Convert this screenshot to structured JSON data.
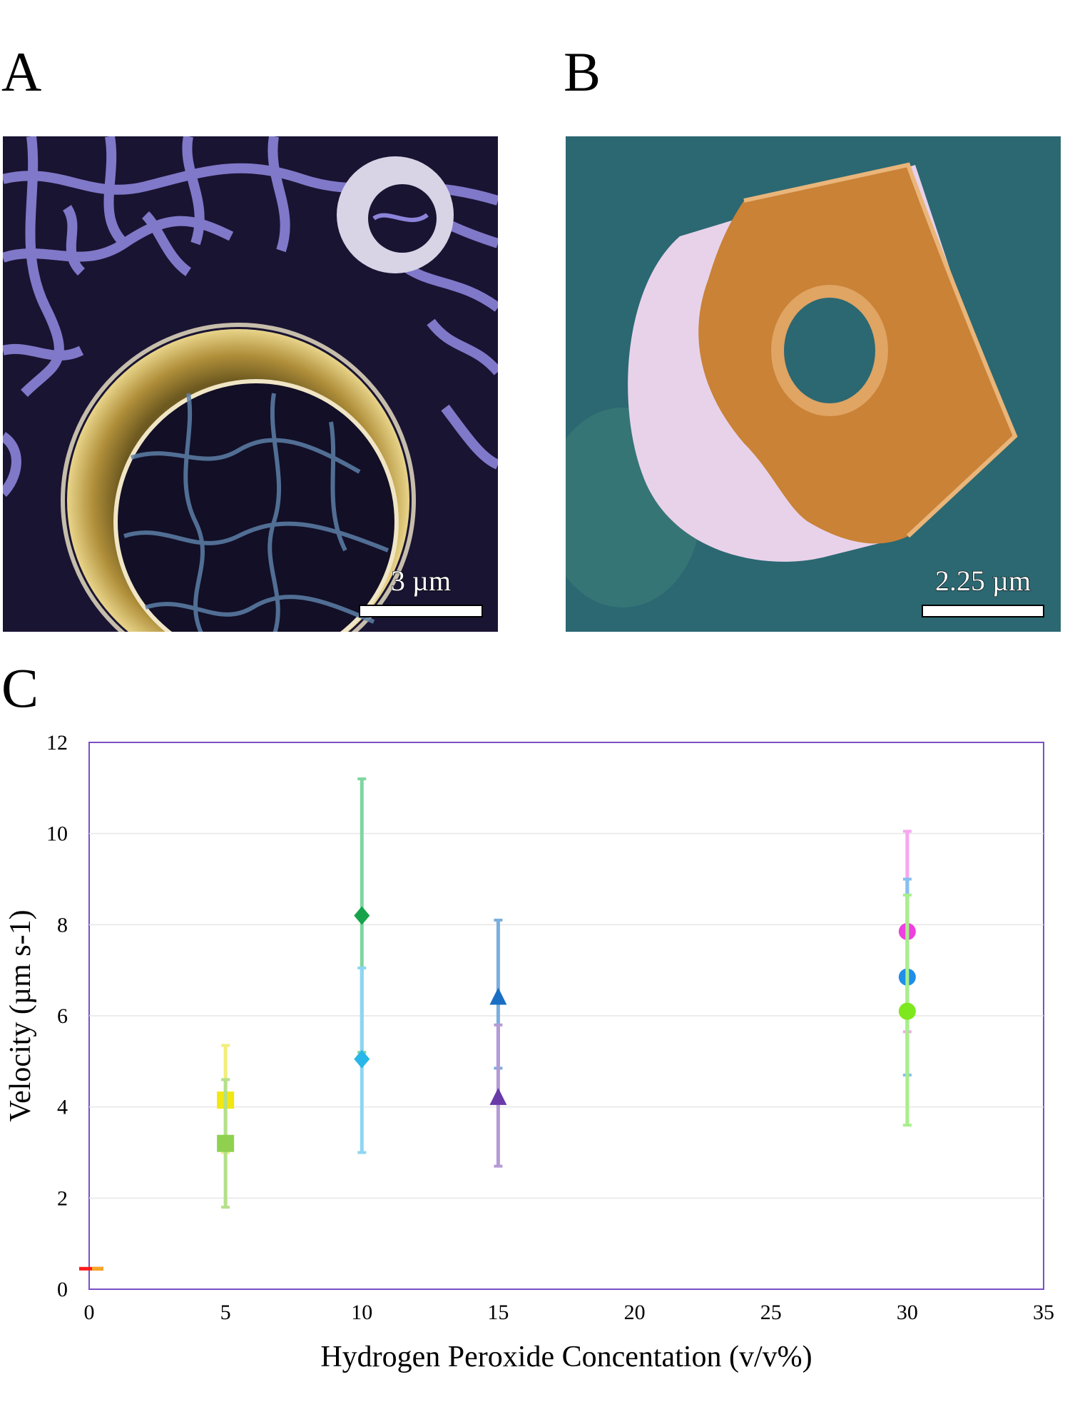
{
  "panels": {
    "a": {
      "label": "A",
      "scale_bar": "3 µm"
    },
    "b": {
      "label": "B",
      "scale_bar": "2.25 µm"
    },
    "c": {
      "label": "C"
    }
  },
  "colors": {
    "frame": "#7b4fc4",
    "grid": "#e6e6e6",
    "panel_a_ring": "#c9a94a",
    "panel_a_membrane": "#8e86e0",
    "panel_b_background": "#2b6872",
    "panel_b_particle_orange": "#d18a3e",
    "panel_b_particle_pink": "#e8d2ea"
  },
  "chart_data": {
    "type": "scatter",
    "xlabel": "Hydrogen Peroxide Concentation (v/v%)",
    "ylabel": "Velocity (µm s-1)",
    "xlim": [
      0,
      35
    ],
    "ylim": [
      0,
      12
    ],
    "xticks": [
      0,
      5,
      10,
      15,
      20,
      25,
      30,
      35
    ],
    "yticks": [
      0,
      2,
      4,
      6,
      8,
      10,
      12
    ],
    "grid": "horizontal",
    "legend": "none",
    "series": [
      {
        "marker": "dash",
        "color": "#ff1a1a",
        "errcolor": "#f5a623",
        "x": 0,
        "y": 0.45,
        "err": [
          0.45,
          0.45
        ]
      },
      {
        "marker": "square",
        "color": "#f2e70f",
        "errcolor": "#f2ee7a",
        "x": 5,
        "y": 4.15,
        "err": [
          3.0,
          5.35
        ]
      },
      {
        "marker": "square",
        "color": "#8fd14f",
        "errcolor": "#b4e08a",
        "x": 5,
        "y": 3.2,
        "err": [
          1.8,
          4.6
        ]
      },
      {
        "marker": "diamond",
        "color": "#16a34a",
        "errcolor": "#7fd6a0",
        "x": 10,
        "y": 8.2,
        "err": [
          5.2,
          11.2
        ]
      },
      {
        "marker": "diamond",
        "color": "#29b6e8",
        "errcolor": "#8ed6f2",
        "x": 10,
        "y": 5.05,
        "err": [
          3.0,
          7.05
        ]
      },
      {
        "marker": "triangle",
        "color": "#1a6fc4",
        "errcolor": "#7aaede",
        "x": 15,
        "y": 6.4,
        "err": [
          4.85,
          8.1
        ]
      },
      {
        "marker": "triangle",
        "color": "#6a3aa8",
        "errcolor": "#b49ad6",
        "x": 15,
        "y": 4.2,
        "err": [
          2.7,
          5.8
        ]
      },
      {
        "marker": "circle",
        "color": "#ee3fe0",
        "errcolor": "#f5a8ee",
        "x": 30,
        "y": 7.85,
        "err": [
          5.65,
          10.05
        ]
      },
      {
        "marker": "circle",
        "color": "#1f8fe8",
        "errcolor": "#86bff0",
        "x": 30,
        "y": 6.85,
        "err": [
          4.7,
          9.0
        ]
      },
      {
        "marker": "circle",
        "color": "#7ee81f",
        "errcolor": "#a8ef8a",
        "x": 30,
        "y": 6.1,
        "err": [
          3.6,
          8.65
        ]
      }
    ]
  }
}
